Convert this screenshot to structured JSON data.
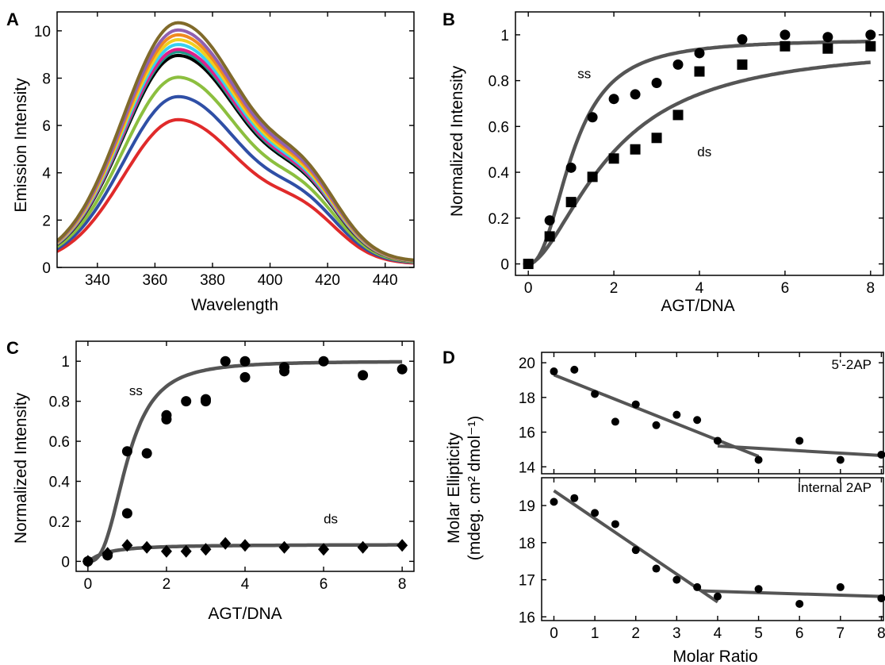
{
  "chart_data": [
    {
      "panel": "A",
      "type": "line",
      "xlabel": "Wavelength",
      "ylabel": "Emission Intensity",
      "xlim": [
        326,
        450
      ],
      "ylim": [
        0,
        10.8
      ],
      "xticks": [
        340,
        360,
        380,
        400,
        420,
        440
      ],
      "yticks": [
        0,
        2,
        4,
        6,
        8,
        10
      ],
      "series": [
        {
          "color": "#e02a2a",
          "peak": 6.1
        },
        {
          "color": "#2f4fa6",
          "peak": 7.05
        },
        {
          "color": "#8cbf3f",
          "peak": 7.85
        },
        {
          "color": "#000000",
          "peak": 8.75
        },
        {
          "color": "#1a9a8a",
          "peak": 8.9
        },
        {
          "color": "#e0208a",
          "peak": 9.0
        },
        {
          "color": "#38d0f0",
          "peak": 9.2
        },
        {
          "color": "#f0d020",
          "peak": 9.4
        },
        {
          "color": "#f08a20",
          "peak": 9.6
        },
        {
          "color": "#9060b0",
          "peak": 9.8
        },
        {
          "color": "#806a2a",
          "peak": 10.1
        }
      ]
    },
    {
      "panel": "B",
      "type": "scatter",
      "xlabel": "AGT/DNA",
      "ylabel": "Normalized Intensity",
      "xlim": [
        -0.3,
        8.3
      ],
      "ylim": [
        -0.05,
        1.1
      ],
      "xticks": [
        0,
        2,
        4,
        6,
        8
      ],
      "yticks": [
        0,
        0.2,
        0.4,
        0.6,
        0.8,
        1
      ],
      "series": [
        {
          "name": "ss",
          "marker": "circle",
          "x": [
            0,
            0.5,
            1,
            1.5,
            2,
            2.5,
            3,
            3.5,
            4,
            5,
            6,
            7,
            8
          ],
          "y": [
            0,
            0.19,
            0.42,
            0.64,
            0.72,
            0.74,
            0.79,
            0.87,
            0.92,
            0.98,
            1.0,
            0.99,
            1.0
          ]
        },
        {
          "name": "ds",
          "marker": "square",
          "x": [
            0,
            0.5,
            1,
            1.5,
            2,
            2.5,
            3,
            3.5,
            4,
            5,
            6,
            7,
            8
          ],
          "y": [
            0,
            0.12,
            0.27,
            0.38,
            0.46,
            0.5,
            0.55,
            0.65,
            0.84,
            0.87,
            0.95,
            0.94,
            0.95
          ]
        }
      ],
      "fits": [
        {
          "vmax": 0.98,
          "kd": 1.05,
          "n": 2.3
        },
        {
          "vmax": 0.96,
          "kd": 1.95,
          "n": 1.7
        }
      ],
      "annotations": [
        {
          "text": "ss",
          "x": 1.15,
          "y": 0.81
        },
        {
          "text": "ds",
          "x": 3.95,
          "y": 0.47
        }
      ]
    },
    {
      "panel": "C",
      "type": "scatter",
      "xlabel": "AGT/DNA",
      "ylabel": "Normalized Intensity",
      "xlim": [
        -0.3,
        8.3
      ],
      "ylim": [
        -0.05,
        1.1
      ],
      "xticks": [
        0,
        2,
        4,
        6,
        8
      ],
      "yticks": [
        0,
        0.2,
        0.4,
        0.6,
        0.8,
        1
      ],
      "series": [
        {
          "name": "ss",
          "marker": "circle",
          "x": [
            0,
            0.5,
            1,
            1,
            1.5,
            2,
            2,
            2.5,
            3,
            3,
            3.5,
            4,
            4,
            5,
            5,
            6,
            7,
            8
          ],
          "y": [
            0,
            0.03,
            0.55,
            0.24,
            0.54,
            0.73,
            0.71,
            0.8,
            0.8,
            0.81,
            1.0,
            1.0,
            0.92,
            0.97,
            0.95,
            1.0,
            0.93,
            0.96
          ]
        },
        {
          "name": "ds",
          "marker": "diamond",
          "x": [
            0,
            0.5,
            1,
            1.5,
            2,
            2.5,
            3,
            3.5,
            4,
            5,
            6,
            7,
            8
          ],
          "y": [
            0,
            0.04,
            0.08,
            0.07,
            0.05,
            0.05,
            0.06,
            0.09,
            0.08,
            0.07,
            0.06,
            0.07,
            0.08
          ]
        }
      ],
      "fits": [
        {
          "vmax": 1.0,
          "kd": 1.0,
          "n": 2.8
        },
        {
          "vmax": 0.085,
          "kd": 0.45,
          "n": 1.2
        }
      ],
      "annotations": [
        {
          "text": "ss",
          "x": 1.05,
          "y": 0.83
        },
        {
          "text": "ds",
          "x": 6.0,
          "y": 0.19
        }
      ]
    },
    {
      "panel": "D",
      "type": "scatter",
      "xlabel": "Molar  Ratio",
      "ylabel_line1": "Molar Ellipticity",
      "ylabel_line2": "(mdeg. cm² dmol⁻¹)",
      "xlim": [
        -0.3,
        8.05
      ],
      "xticks": [
        0,
        1,
        2,
        3,
        4,
        5,
        6,
        7,
        8
      ],
      "subplots": [
        {
          "label": "5'-2AP",
          "ylim": [
            13.6,
            20.6
          ],
          "yticks": [
            14,
            16,
            18,
            20
          ],
          "x": [
            0,
            0.5,
            1,
            1.5,
            2,
            2.5,
            3,
            3.5,
            4,
            5,
            6,
            7,
            8
          ],
          "y": [
            19.5,
            19.6,
            18.2,
            16.6,
            17.6,
            16.4,
            17.0,
            16.7,
            15.5,
            14.4,
            15.5,
            14.4,
            14.7
          ],
          "fits": [
            [
              0,
              19.3,
              5,
              14.6
            ],
            [
              4,
              15.2,
              8,
              14.65
            ]
          ]
        },
        {
          "label": "Internal 2AP",
          "ylim": [
            15.9,
            19.75
          ],
          "yticks": [
            16,
            17,
            18,
            19
          ],
          "x": [
            0,
            0.5,
            1,
            1.5,
            2,
            2.5,
            3,
            3.5,
            4,
            5,
            6,
            7,
            8
          ],
          "y": [
            19.1,
            19.2,
            18.8,
            18.5,
            17.8,
            17.3,
            17.0,
            16.8,
            16.55,
            16.75,
            16.35,
            16.8,
            16.5
          ],
          "fits": [
            [
              0,
              19.4,
              4,
              16.4
            ],
            [
              3.6,
              16.7,
              8,
              16.55
            ]
          ]
        }
      ]
    }
  ],
  "panel_letters": [
    "A",
    "B",
    "C",
    "D"
  ]
}
